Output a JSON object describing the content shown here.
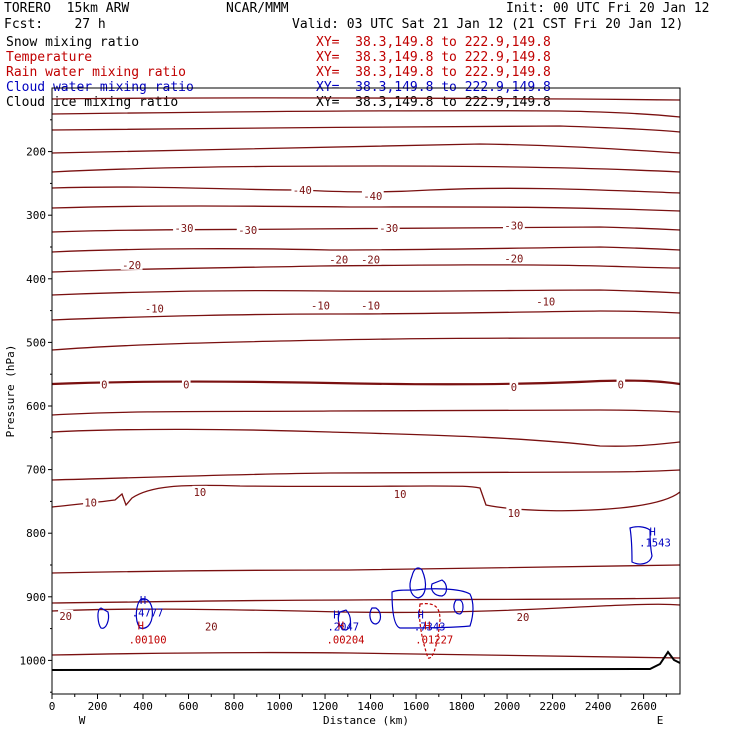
{
  "header": {
    "model": "TORERO  15km ARW",
    "org": "NCAR/MMM",
    "init": "Init: 00 UTC Fri 20 Jan 12",
    "fcst": "Fcst:    27 h",
    "valid": "Valid: 03 UTC Sat 21 Jan 12 (21 CST Fri 20 Jan 12)"
  },
  "legend": [
    {
      "label": "Snow mixing ratio",
      "xy": "XY=  38.3,149.8 to 222.9,149.8",
      "color": "#000000"
    },
    {
      "label": "Temperature",
      "xy": "XY=  38.3,149.8 to 222.9,149.8",
      "color": "#c00000"
    },
    {
      "label": "Rain water mixing ratio",
      "xy": "XY=  38.3,149.8 to 222.9,149.8",
      "color": "#c00000"
    },
    {
      "label": "Cloud water mixing ratio",
      "xy": "XY=  38.3,149.8 to 222.9,149.8",
      "color": "#0000c0"
    },
    {
      "label": "Cloud ice mixing ratio",
      "xy": "XY=  38.3,149.8 to 222.9,149.8",
      "color": "#000000"
    }
  ],
  "chart_data": {
    "type": "contour cross-section",
    "xlabel": "Distance (km)",
    "ylabel": "Pressure (hPa)",
    "x_ticks": [
      "0",
      "200",
      "400",
      "600",
      "800",
      "1000",
      "1200",
      "1400",
      "1600",
      "1800",
      "2000",
      "2200",
      "2400",
      "2600"
    ],
    "y_ticks": [
      "200",
      "300",
      "400",
      "500",
      "600",
      "700",
      "800",
      "900",
      "1000"
    ],
    "xlim": [
      0,
      2760
    ],
    "ylim": [
      1050,
      100
    ],
    "left_label": "W",
    "right_label": "E",
    "temperature_contour_labels": [
      {
        "text": "-40",
        "x": 1100,
        "p": 260
      },
      {
        "text": "-40",
        "x": 1410,
        "p": 270
      },
      {
        "text": "-30",
        "x": 580,
        "p": 320
      },
      {
        "text": "-30",
        "x": 860,
        "p": 323
      },
      {
        "text": "-30",
        "x": 1480,
        "p": 320
      },
      {
        "text": "-30",
        "x": 2030,
        "p": 316
      },
      {
        "text": "-20",
        "x": 350,
        "p": 378
      },
      {
        "text": "-20",
        "x": 1260,
        "p": 370
      },
      {
        "text": "-20",
        "x": 1400,
        "p": 370
      },
      {
        "text": "-20",
        "x": 2030,
        "p": 368
      },
      {
        "text": "-10",
        "x": 450,
        "p": 447
      },
      {
        "text": "-10",
        "x": 1180,
        "p": 442
      },
      {
        "text": "-10",
        "x": 1400,
        "p": 442
      },
      {
        "text": "-10",
        "x": 2170,
        "p": 436
      },
      {
        "text": "0",
        "x": 230,
        "p": 566
      },
      {
        "text": "0",
        "x": 590,
        "p": 566
      },
      {
        "text": "0",
        "x": 2030,
        "p": 570
      },
      {
        "text": "0",
        "x": 2500,
        "p": 566
      },
      {
        "text": "10",
        "x": 170,
        "p": 752
      },
      {
        "text": "10",
        "x": 650,
        "p": 735
      },
      {
        "text": "10",
        "x": 1530,
        "p": 738
      },
      {
        "text": "10",
        "x": 2030,
        "p": 768
      },
      {
        "text": "20",
        "x": 60,
        "p": 930
      },
      {
        "text": "20",
        "x": 700,
        "p": 947
      },
      {
        "text": "20",
        "x": 2070,
        "p": 932
      }
    ],
    "extrema_labels": [
      {
        "text": "H",
        "x": 400,
        "p": 905,
        "color": "#0000c0"
      },
      {
        "text": ".4777",
        "x": 420,
        "p": 925,
        "color": "#0000c0"
      },
      {
        "text": "H",
        "x": 1250,
        "p": 928,
        "color": "#0000c0"
      },
      {
        "text": ".2047",
        "x": 1280,
        "p": 947,
        "color": "#0000c0"
      },
      {
        "text": "H",
        "x": 1620,
        "p": 928,
        "color": "#0000c0"
      },
      {
        "text": ".7343",
        "x": 1660,
        "p": 947,
        "color": "#0000c0"
      },
      {
        "text": "H",
        "x": 2640,
        "p": 797,
        "color": "#0000c0"
      },
      {
        "text": ".1543",
        "x": 2650,
        "p": 815,
        "color": "#0000c0"
      },
      {
        "text": "H",
        "x": 390,
        "p": 945,
        "color": "#c00000"
      },
      {
        "text": ".00100",
        "x": 420,
        "p": 967,
        "color": "#c00000"
      },
      {
        "text": "H",
        "x": 1270,
        "p": 945,
        "color": "#c00000"
      },
      {
        "text": ".00204",
        "x": 1290,
        "p": 967,
        "color": "#c00000"
      },
      {
        "text": "H",
        "x": 1650,
        "p": 945,
        "color": "#c00000"
      },
      {
        "text": ".01227",
        "x": 1680,
        "p": 967,
        "color": "#c00000"
      }
    ]
  }
}
